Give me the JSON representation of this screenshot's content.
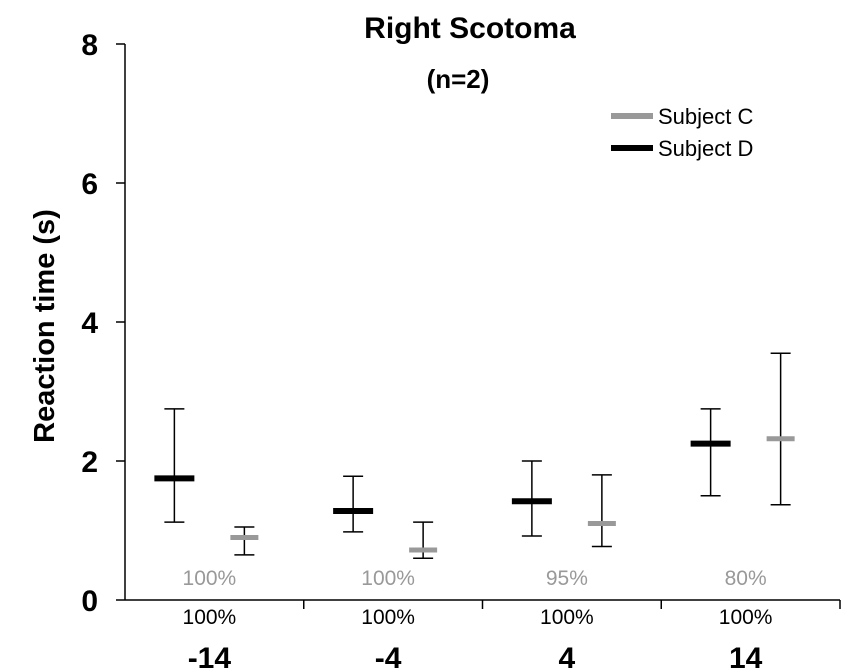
{
  "chart_data": {
    "type": "errorbar",
    "title": "Right Scotoma",
    "subtitle": "(n=2)",
    "ylabel": "Reaction time (s)",
    "xlabel": "",
    "ylim": [
      0,
      8
    ],
    "yticks": [
      0,
      2,
      4,
      6,
      8
    ],
    "categories": [
      "-14",
      "-4",
      "4",
      "14"
    ],
    "legend_position": "top-right",
    "grid": false,
    "series": [
      {
        "name": "Subject D",
        "color": "#000000",
        "values": [
          1.75,
          1.28,
          1.42,
          2.25
        ],
        "err_low": [
          1.12,
          0.98,
          0.92,
          1.5
        ],
        "err_high": [
          2.75,
          1.78,
          2.0,
          2.75
        ],
        "percent_labels": [
          "100%",
          "100%",
          "100%",
          "100%"
        ]
      },
      {
        "name": "Subject C",
        "color": "#999999",
        "values": [
          0.9,
          0.72,
          1.1,
          2.32
        ],
        "err_low": [
          0.65,
          0.6,
          0.77,
          1.37
        ],
        "err_high": [
          1.05,
          1.12,
          1.8,
          3.55
        ],
        "percent_labels": [
          "100%",
          "100%",
          "95%",
          "80%"
        ]
      }
    ]
  }
}
